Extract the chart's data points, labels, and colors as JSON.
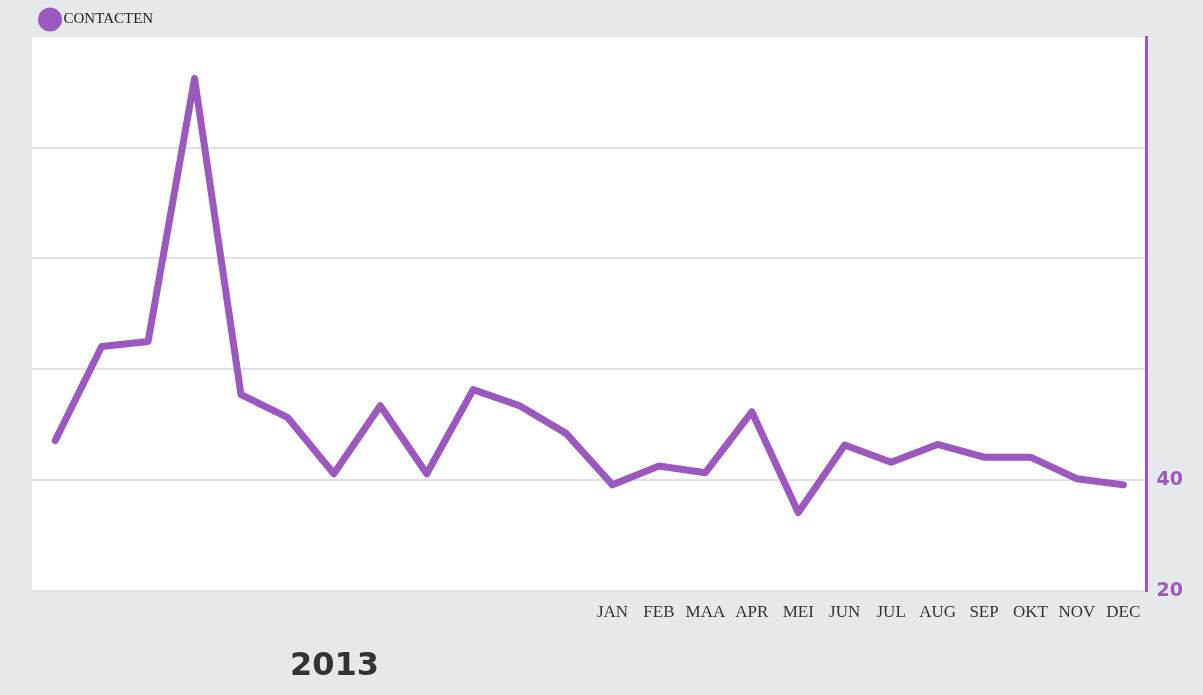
{
  "chart_data": {
    "type": "line",
    "legend": "top left",
    "grid": "y",
    "marker": "none",
    "line_style": "solid",
    "categories": [
      null,
      null,
      null,
      null,
      null,
      null,
      null,
      null,
      null,
      null,
      null,
      null,
      "JAN",
      "FEB",
      "MAA",
      "APR",
      "MEI",
      "JUN",
      "JUL",
      "AUG",
      "SEP",
      "OKT",
      "NOV",
      "DEC"
    ],
    "y2lim": [
      20,
      120
    ],
    "y2ticks": [
      20,
      40,
      {
        "value": 60,
        "label": null
      },
      {
        "value": 80,
        "label": null
      },
      {
        "value": 100,
        "label": null
      }
    ],
    "annotations": [
      "2013"
    ],
    "series": [
      {
        "name": "CONTACTEN",
        "color": "#9b59c0",
        "axis": "y2",
        "values": [
          47.1,
          64.1,
          65,
          112.5,
          55.4,
          51.3,
          41.1,
          53.4,
          41.1,
          56.3,
          53.4,
          48.4,
          39.1,
          42.5,
          41.3,
          52.3,
          34.1,
          46.3,
          43.2,
          46.4,
          44.1,
          44.1,
          40.2,
          39.1
        ]
      }
    ]
  }
}
